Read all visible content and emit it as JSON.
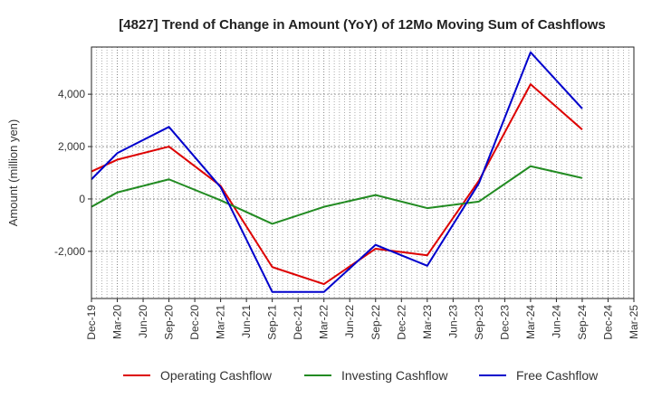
{
  "chart_data": {
    "type": "line",
    "title": "[4827]  Trend of Change in Amount (YoY) of 12Mo Moving Sum of Cashflows",
    "xlabel": "",
    "ylabel": "Amount (million yen)",
    "categories": [
      "Dec-19",
      "Mar-20",
      "Jun-20",
      "Sep-20",
      "Dec-20",
      "Mar-21",
      "Jun-21",
      "Sep-21",
      "Dec-21",
      "Mar-22",
      "Jun-22",
      "Sep-22",
      "Dec-22",
      "Mar-23",
      "Jun-23",
      "Sep-23",
      "Dec-23",
      "Mar-24",
      "Jun-24",
      "Sep-24",
      "Dec-24",
      "Mar-25"
    ],
    "ylim": [
      -3800,
      5800
    ],
    "yticks": [
      -2000,
      0,
      2000,
      4000
    ],
    "ytick_labels": [
      "-2,000",
      "0",
      "2,000",
      "4,000"
    ],
    "grid": true,
    "legend_position": "bottom",
    "series": [
      {
        "name": "Operating Cashflow",
        "color": "#dd0000",
        "values": [
          1050,
          1500,
          null,
          2000,
          null,
          500,
          null,
          -2600,
          null,
          -3250,
          null,
          -1900,
          null,
          -2150,
          null,
          700,
          null,
          4380,
          null,
          2650,
          null,
          null
        ]
      },
      {
        "name": "Investing Cashflow",
        "color": "#228b22",
        "values": [
          -300,
          250,
          null,
          750,
          null,
          -50,
          null,
          -950,
          null,
          -300,
          null,
          150,
          null,
          -350,
          null,
          -100,
          null,
          1250,
          null,
          800,
          null,
          null
        ]
      },
      {
        "name": "Free Cashflow",
        "color": "#0000cc",
        "values": [
          750,
          1750,
          null,
          2750,
          null,
          450,
          null,
          -3550,
          null,
          -3550,
          null,
          -1750,
          null,
          -2550,
          null,
          600,
          null,
          5600,
          null,
          3450,
          null,
          null
        ]
      }
    ]
  }
}
